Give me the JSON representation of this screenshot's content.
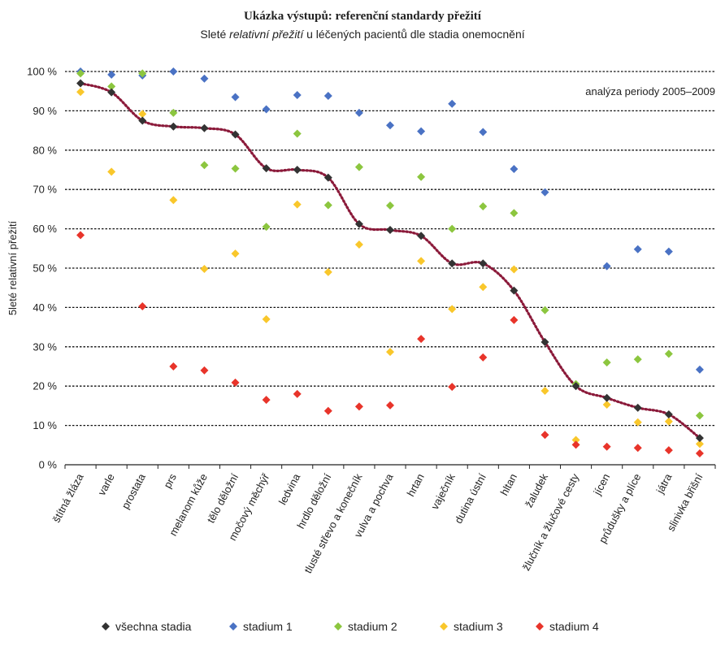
{
  "chart_data": {
    "type": "scatter",
    "title": "Ukázka výstupů: referenční standardy přežití",
    "subtitle_parts": [
      "Sleté ",
      "relativní přežití",
      " u léčených pacientů dle stadia onemocnění"
    ],
    "ylabel": "5leté relativní přežití",
    "annotation": "analýza periody 2005–2009",
    "ylim": [
      0,
      100
    ],
    "yticks": [
      0,
      10,
      20,
      30,
      40,
      50,
      60,
      70,
      80,
      90,
      100
    ],
    "ytick_labels": [
      "0 %",
      "10 %",
      "20 %",
      "30 %",
      "40 %",
      "50 %",
      "60 %",
      "70 %",
      "80 %",
      "90 %",
      "100 %"
    ],
    "grid": true,
    "legend_position": "bottom",
    "categories": [
      "štítná žláza",
      "varle",
      "prostata",
      "prs",
      "melanom kůže",
      "tělo děložní",
      "močový měchýř",
      "ledvina",
      "hrdlo děložní",
      "tlusté střevo a konečník",
      "vulva a pochva",
      "hrtan",
      "vaječník",
      "dutina ústní",
      "hltan",
      "žaludek",
      "žlučník a žlučové cesty",
      "jícen",
      "průdušky a plíce",
      "játra",
      "slinivka břišní"
    ],
    "series": [
      {
        "name": "všechna stadia",
        "color": "#333333",
        "marker": "diamond",
        "line": "dotted",
        "line_color": "#8b1a3a",
        "values": [
          97,
          94.7,
          87.5,
          86,
          85.6,
          84,
          75.4,
          75,
          73,
          61.2,
          59.7,
          58.2,
          51.2,
          51.2,
          44.3,
          31.2,
          20,
          17,
          14.5,
          12.8,
          6.8
        ]
      },
      {
        "name": "stadium 1",
        "color": "#4a72c4",
        "marker": "diamond",
        "values": [
          100,
          99.2,
          99,
          100,
          98.2,
          93.5,
          90.4,
          94,
          93.8,
          89.5,
          86.3,
          84.8,
          91.8,
          84.6,
          75.2,
          69.3,
          null,
          50.5,
          54.8,
          54.2,
          24.2
        ]
      },
      {
        "name": "stadium 2",
        "color": "#8cc63f",
        "marker": "diamond",
        "values": [
          99.5,
          96.2,
          99.5,
          89.5,
          76.2,
          75.3,
          60.5,
          84.2,
          66,
          75.7,
          65.9,
          73.2,
          60,
          65.7,
          64,
          39.3,
          20.5,
          26,
          26.8,
          28.2,
          12.5
        ]
      },
      {
        "name": "stadium 3",
        "color": "#f9c72b",
        "marker": "diamond",
        "values": [
          94.8,
          74.5,
          89.2,
          67.3,
          49.8,
          53.7,
          37,
          66.2,
          49,
          56,
          28.7,
          51.8,
          39.6,
          45.2,
          49.7,
          18.8,
          6.3,
          15.3,
          10.8,
          11,
          5.3
        ]
      },
      {
        "name": "stadium 4",
        "color": "#e8342a",
        "marker": "diamond",
        "values": [
          58.4,
          null,
          40.3,
          25,
          24,
          20.9,
          16.5,
          18,
          13.7,
          14.8,
          15.1,
          32,
          19.8,
          27.3,
          36.8,
          7.6,
          5.1,
          4.6,
          4.3,
          3.7,
          2.9
        ]
      }
    ]
  }
}
